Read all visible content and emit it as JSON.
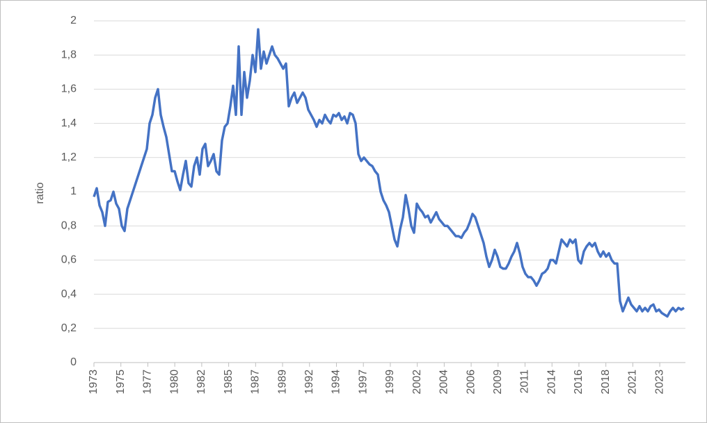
{
  "chart_data": {
    "type": "line",
    "y_label": "ratio",
    "x": [
      1973,
      1973.25,
      1973.5,
      1973.75,
      1974,
      1974.25,
      1974.5,
      1974.75,
      1975,
      1975.25,
      1975.5,
      1975.75,
      1976,
      1976.25,
      1976.5,
      1976.75,
      1977,
      1977.25,
      1977.5,
      1977.75,
      1978,
      1978.25,
      1978.5,
      1978.75,
      1979,
      1979.25,
      1979.5,
      1979.75,
      1980,
      1980.25,
      1980.5,
      1980.75,
      1981,
      1981.25,
      1981.5,
      1981.75,
      1982,
      1982.25,
      1982.5,
      1982.75,
      1983,
      1983.25,
      1983.5,
      1983.75,
      1984,
      1984.25,
      1984.5,
      1984.75,
      1985,
      1985.25,
      1985.5,
      1985.75,
      1986,
      1986.25,
      1986.5,
      1986.75,
      1987,
      1987.25,
      1987.5,
      1987.75,
      1988,
      1988.25,
      1988.5,
      1988.75,
      1989,
      1989.25,
      1989.5,
      1989.75,
      1990,
      1990.25,
      1990.5,
      1990.75,
      1991,
      1991.25,
      1991.5,
      1991.75,
      1992,
      1992.25,
      1992.5,
      1992.75,
      1993,
      1993.25,
      1993.5,
      1993.75,
      1994,
      1994.25,
      1994.5,
      1994.75,
      1995,
      1995.25,
      1995.5,
      1995.75,
      1996,
      1996.25,
      1996.5,
      1996.75,
      1997,
      1997.25,
      1997.5,
      1997.75,
      1998,
      1998.25,
      1998.5,
      1998.75,
      1999,
      1999.25,
      1999.5,
      1999.75,
      2000,
      2000.25,
      2000.5,
      2000.75,
      2001,
      2001.25,
      2001.5,
      2001.75,
      2002,
      2002.25,
      2002.5,
      2002.75,
      2003,
      2003.25,
      2003.5,
      2003.75,
      2004,
      2004.25,
      2004.5,
      2004.75,
      2005,
      2005.25,
      2005.5,
      2005.75,
      2006,
      2006.25,
      2006.5,
      2006.75,
      2007,
      2007.25,
      2007.5,
      2007.75,
      2008,
      2008.25,
      2008.5,
      2008.75,
      2009,
      2009.25,
      2009.5,
      2009.75,
      2010,
      2010.25,
      2010.5,
      2010.75,
      2011,
      2011.25,
      2011.5,
      2011.75,
      2012,
      2012.25,
      2012.5,
      2012.75,
      2013,
      2013.25,
      2013.5,
      2013.75,
      2014,
      2014.25,
      2014.5,
      2014.75,
      2015,
      2015.25,
      2015.5,
      2015.75,
      2016,
      2016.25,
      2016.5,
      2016.75,
      2017,
      2017.25,
      2017.5,
      2017.75,
      2018,
      2018.25,
      2018.5,
      2018.75,
      2019,
      2019.25,
      2019.5,
      2019.75,
      2020,
      2020.25,
      2020.5,
      2020.75,
      2021,
      2021.25,
      2021.5,
      2021.75,
      2022,
      2022.25,
      2022.5,
      2022.75,
      2023,
      2023.25,
      2023.5,
      2023.75,
      2024,
      2024.25,
      2024.5,
      2024.75,
      2025,
      2025.25,
      2025.5,
      2025.75,
      2026
    ],
    "series": [
      {
        "color": "#4472c4",
        "values": [
          0.97,
          1.02,
          0.92,
          0.88,
          0.8,
          0.94,
          0.95,
          1.0,
          0.93,
          0.9,
          0.8,
          0.77,
          0.9,
          0.95,
          1.0,
          1.05,
          1.1,
          1.15,
          1.2,
          1.25,
          1.4,
          1.45,
          1.55,
          1.6,
          1.45,
          1.38,
          1.32,
          1.22,
          1.12,
          1.12,
          1.06,
          1.01,
          1.1,
          1.18,
          1.05,
          1.03,
          1.15,
          1.2,
          1.1,
          1.25,
          1.28,
          1.15,
          1.18,
          1.22,
          1.12,
          1.1,
          1.3,
          1.38,
          1.4,
          1.5,
          1.62,
          1.45,
          1.85,
          1.45,
          1.7,
          1.55,
          1.65,
          1.8,
          1.7,
          1.95,
          1.72,
          1.82,
          1.75,
          1.8,
          1.85,
          1.8,
          1.78,
          1.75,
          1.72,
          1.75,
          1.5,
          1.55,
          1.58,
          1.52,
          1.55,
          1.58,
          1.55,
          1.48,
          1.45,
          1.42,
          1.38,
          1.42,
          1.4,
          1.45,
          1.42,
          1.4,
          1.45,
          1.44,
          1.46,
          1.42,
          1.44,
          1.4,
          1.46,
          1.45,
          1.4,
          1.22,
          1.18,
          1.2,
          1.18,
          1.16,
          1.15,
          1.12,
          1.1,
          1.0,
          0.95,
          0.92,
          0.88,
          0.8,
          0.72,
          0.68,
          0.78,
          0.85,
          0.98,
          0.9,
          0.8,
          0.76,
          0.93,
          0.9,
          0.88,
          0.85,
          0.86,
          0.82,
          0.85,
          0.88,
          0.84,
          0.82,
          0.8,
          0.8,
          0.78,
          0.76,
          0.74,
          0.74,
          0.73,
          0.76,
          0.78,
          0.82,
          0.87,
          0.85,
          0.8,
          0.75,
          0.7,
          0.62,
          0.56,
          0.6,
          0.66,
          0.62,
          0.56,
          0.55,
          0.55,
          0.58,
          0.62,
          0.65,
          0.7,
          0.64,
          0.56,
          0.52,
          0.5,
          0.5,
          0.48,
          0.45,
          0.48,
          0.52,
          0.53,
          0.55,
          0.6,
          0.6,
          0.58,
          0.65,
          0.72,
          0.7,
          0.68,
          0.72,
          0.7,
          0.72,
          0.6,
          0.58,
          0.65,
          0.68,
          0.7,
          0.68,
          0.7,
          0.65,
          0.62,
          0.65,
          0.62,
          0.64,
          0.6,
          0.58,
          0.58,
          0.36,
          0.3,
          0.34,
          0.38,
          0.34,
          0.32,
          0.3,
          0.33,
          0.3,
          0.32,
          0.3,
          0.33,
          0.34,
          0.3,
          0.31,
          0.29,
          0.28,
          0.27,
          0.3,
          0.32,
          0.3,
          0.32,
          0.31,
          0.32
        ]
      }
    ],
    "xlim": [
      1973,
      2026.125
    ],
    "xticks": [
      {
        "value": 1973,
        "label": "1973"
      },
      {
        "value": 1975.42,
        "label": "1975"
      },
      {
        "value": 1977.84,
        "label": "1977"
      },
      {
        "value": 1980.26,
        "label": "1980"
      },
      {
        "value": 1982.68,
        "label": "1982"
      },
      {
        "value": 1985.1,
        "label": "1985"
      },
      {
        "value": 1987.52,
        "label": "1987"
      },
      {
        "value": 1989.94,
        "label": "1989"
      },
      {
        "value": 1992.36,
        "label": "1992"
      },
      {
        "value": 1994.78,
        "label": "1994"
      },
      {
        "value": 1997.2,
        "label": "1997"
      },
      {
        "value": 1999.62,
        "label": "1999"
      },
      {
        "value": 2002.04,
        "label": "2002"
      },
      {
        "value": 2004.46,
        "label": "2004"
      },
      {
        "value": 2006.88,
        "label": "2006"
      },
      {
        "value": 2009.3,
        "label": "2009"
      },
      {
        "value": 2011.72,
        "label": "2011"
      },
      {
        "value": 2014.14,
        "label": "2014"
      },
      {
        "value": 2016.56,
        "label": "2016"
      },
      {
        "value": 2018.98,
        "label": "2018"
      },
      {
        "value": 2021.4,
        "label": "2021"
      },
      {
        "value": 2023.82,
        "label": "2023"
      }
    ],
    "ylim": [
      0,
      2
    ],
    "yticks": [
      0,
      {
        "value": 0.2,
        "label": "0,2"
      },
      {
        "value": 0.4,
        "label": "0,4"
      },
      {
        "value": 0.6,
        "label": "0,6"
      },
      {
        "value": 0.8,
        "label": "0,8"
      },
      1,
      {
        "value": 1.2,
        "label": "1,2"
      },
      {
        "value": 1.4,
        "label": "1,4"
      },
      {
        "value": 1.6,
        "label": "1,6"
      },
      {
        "value": 1.8,
        "label": "1,8"
      },
      2
    ],
    "grid": true
  }
}
